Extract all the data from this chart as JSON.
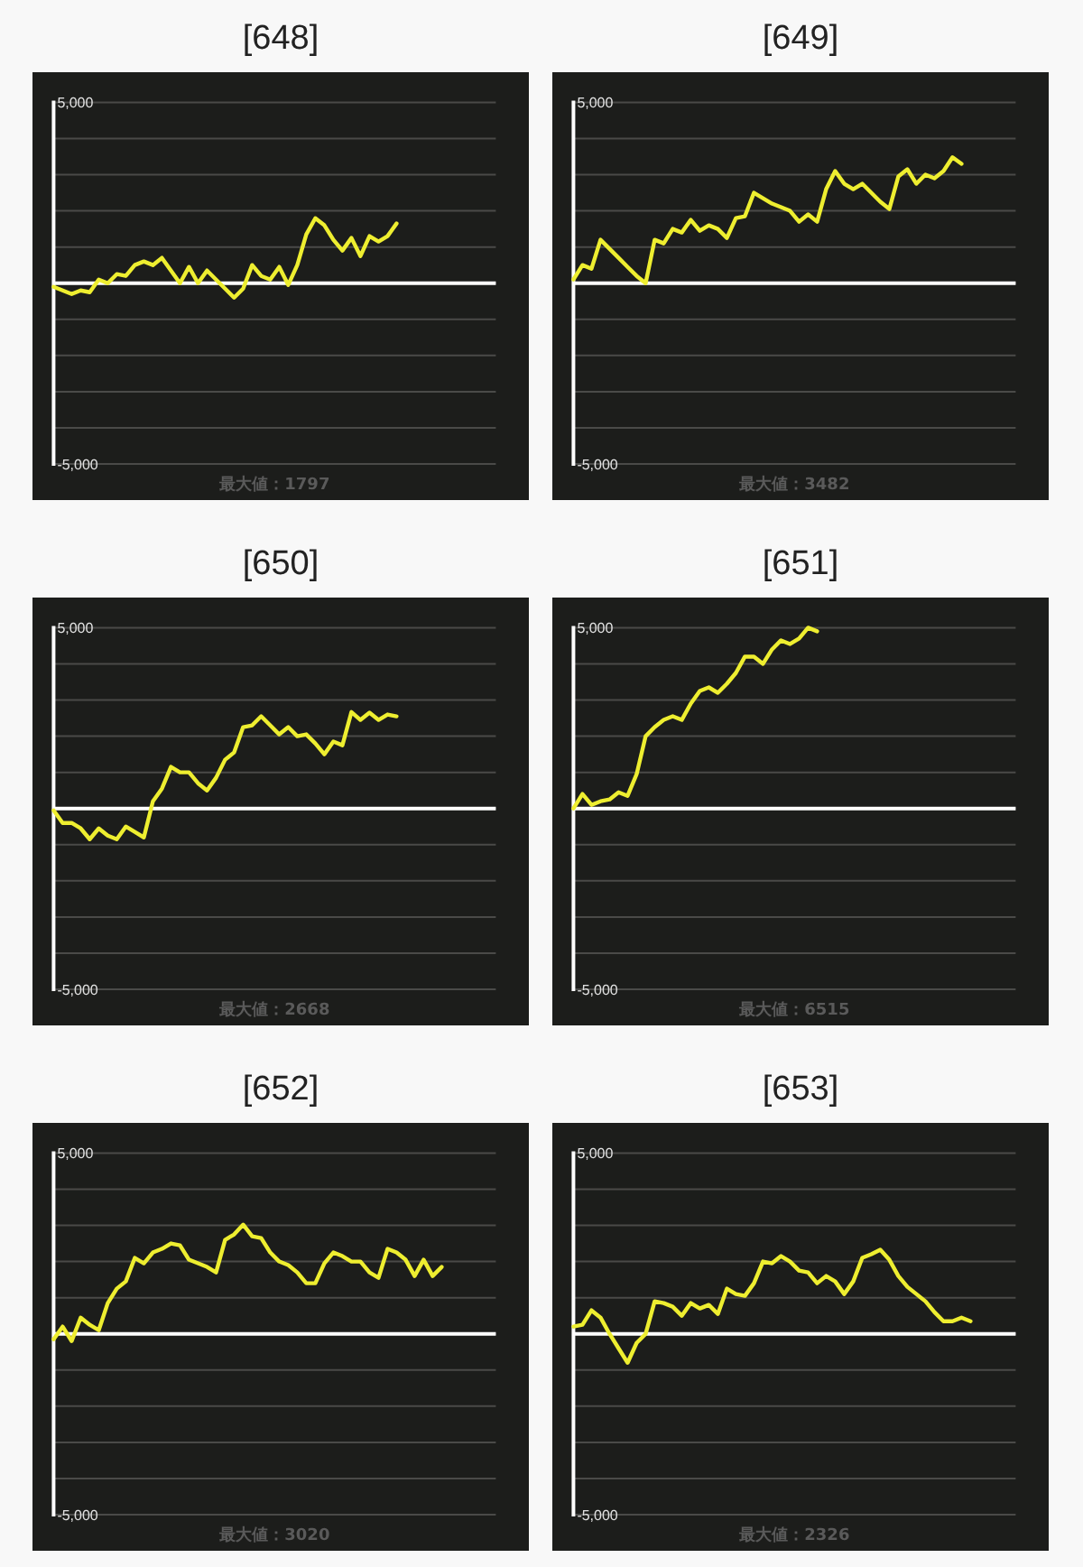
{
  "chart_data": [
    {
      "type": "line",
      "title": "[648]",
      "categories": [
        null,
        null,
        null,
        null,
        null,
        null,
        null,
        null,
        null,
        null,
        null,
        null,
        null,
        null,
        null,
        null,
        null,
        null,
        null,
        null,
        null,
        null,
        null,
        null,
        null,
        null,
        null,
        null,
        null,
        null,
        null,
        null,
        null,
        null,
        null,
        null,
        null,
        null,
        null,
        null,
        null,
        null,
        null,
        null,
        null,
        null,
        null,
        null,
        null,
        null
      ],
      "series": [
        {
          "color": "#eeee30",
          "values": [
            -100,
            -200,
            -300,
            -200,
            -250,
            100,
            0,
            250,
            200,
            500,
            600,
            500,
            700,
            350,
            0,
            450,
            0,
            350,
            100,
            -150,
            -400,
            -150,
            500,
            200,
            100,
            450,
            -50,
            500,
            1350,
            1797,
            1600,
            1200,
            900,
            1250,
            750,
            1300,
            1150,
            1300,
            1650,
            null,
            null,
            null,
            null,
            null,
            null,
            null,
            null,
            null,
            null,
            null
          ]
        }
      ],
      "ylim": [
        -5000,
        5000
      ],
      "yticks": [
        {
          "value": -5000,
          "label": "-5,000"
        },
        {
          "value": -4000,
          "label": null
        },
        {
          "value": -3000,
          "label": null
        },
        {
          "value": -2000,
          "label": null
        },
        {
          "value": -1000,
          "label": null
        },
        {
          "value": 0,
          "label": null
        },
        {
          "value": 1000,
          "label": null
        },
        {
          "value": 2000,
          "label": null
        },
        {
          "value": 3000,
          "label": null
        },
        {
          "value": 4000,
          "label": null
        },
        {
          "value": 5000,
          "label": "5,000"
        }
      ],
      "grid": "y",
      "ref_lines": [
        {
          "axis": "y",
          "value": 0,
          "color": "#ffffff"
        }
      ],
      "annotations": [
        "最大値：1797"
      ]
    },
    {
      "type": "line",
      "title": "[649]",
      "categories": [
        null,
        null,
        null,
        null,
        null,
        null,
        null,
        null,
        null,
        null,
        null,
        null,
        null,
        null,
        null,
        null,
        null,
        null,
        null,
        null,
        null,
        null,
        null,
        null,
        null,
        null,
        null,
        null,
        null,
        null,
        null,
        null,
        null,
        null,
        null,
        null,
        null,
        null,
        null,
        null,
        null,
        null,
        null,
        null,
        null,
        null,
        null,
        null,
        null,
        null
      ],
      "series": [
        {
          "color": "#eeee30",
          "values": [
            100,
            500,
            400,
            1200,
            950,
            700,
            450,
            200,
            0,
            1200,
            1100,
            1500,
            1400,
            1750,
            1450,
            1600,
            1500,
            1250,
            1800,
            1850,
            2500,
            2350,
            2200,
            2100,
            2000,
            1700,
            1900,
            1700,
            2600,
            3100,
            2750,
            2600,
            2750,
            2500,
            2250,
            2050,
            2950,
            3150,
            2750,
            3000,
            2900,
            3100,
            3482,
            3300,
            null,
            null,
            null,
            null,
            null,
            null
          ]
        }
      ],
      "ylim": [
        -5000,
        5000
      ],
      "yticks": [
        {
          "value": -5000,
          "label": "-5,000"
        },
        {
          "value": -4000,
          "label": null
        },
        {
          "value": -3000,
          "label": null
        },
        {
          "value": -2000,
          "label": null
        },
        {
          "value": -1000,
          "label": null
        },
        {
          "value": 0,
          "label": null
        },
        {
          "value": 1000,
          "label": null
        },
        {
          "value": 2000,
          "label": null
        },
        {
          "value": 3000,
          "label": null
        },
        {
          "value": 4000,
          "label": null
        },
        {
          "value": 5000,
          "label": "5,000"
        }
      ],
      "grid": "y",
      "ref_lines": [
        {
          "axis": "y",
          "value": 0,
          "color": "#ffffff"
        }
      ],
      "annotations": [
        "最大値：3482"
      ]
    },
    {
      "type": "line",
      "title": "[650]",
      "categories": [
        null,
        null,
        null,
        null,
        null,
        null,
        null,
        null,
        null,
        null,
        null,
        null,
        null,
        null,
        null,
        null,
        null,
        null,
        null,
        null,
        null,
        null,
        null,
        null,
        null,
        null,
        null,
        null,
        null,
        null,
        null,
        null,
        null,
        null,
        null,
        null,
        null,
        null,
        null,
        null,
        null,
        null,
        null,
        null,
        null,
        null,
        null,
        null,
        null,
        null
      ],
      "series": [
        {
          "color": "#eeee30",
          "values": [
            -50,
            -400,
            -400,
            -550,
            -850,
            -550,
            -750,
            -850,
            -500,
            -650,
            -800,
            200,
            550,
            1150,
            1000,
            1000,
            700,
            500,
            850,
            1350,
            1550,
            2250,
            2300,
            2550,
            2300,
            2050,
            2250,
            2000,
            2050,
            1800,
            1500,
            1850,
            1750,
            2668,
            2450,
            2650,
            2450,
            2600,
            2550,
            null,
            null,
            null,
            null,
            null,
            null,
            null,
            null,
            null,
            null,
            null
          ]
        }
      ],
      "ylim": [
        -5000,
        5000
      ],
      "yticks": [
        {
          "value": -5000,
          "label": "-5,000"
        },
        {
          "value": -4000,
          "label": null
        },
        {
          "value": -3000,
          "label": null
        },
        {
          "value": -2000,
          "label": null
        },
        {
          "value": -1000,
          "label": null
        },
        {
          "value": 0,
          "label": null
        },
        {
          "value": 1000,
          "label": null
        },
        {
          "value": 2000,
          "label": null
        },
        {
          "value": 3000,
          "label": null
        },
        {
          "value": 4000,
          "label": null
        },
        {
          "value": 5000,
          "label": "5,000"
        }
      ],
      "grid": "y",
      "ref_lines": [
        {
          "axis": "y",
          "value": 0,
          "color": "#ffffff"
        }
      ],
      "annotations": [
        "最大値：2668"
      ]
    },
    {
      "type": "line",
      "title": "[651]",
      "categories": [
        null,
        null,
        null,
        null,
        null,
        null,
        null,
        null,
        null,
        null,
        null,
        null,
        null,
        null,
        null,
        null,
        null,
        null,
        null,
        null,
        null,
        null,
        null,
        null,
        null,
        null,
        null,
        null,
        null,
        null,
        null,
        null,
        null,
        null,
        null,
        null,
        null,
        null,
        null,
        null,
        null,
        null,
        null,
        null,
        null,
        null,
        null,
        null,
        null,
        null
      ],
      "series": [
        {
          "color": "#eeee30",
          "values": [
            0,
            400,
            100,
            200,
            250,
            450,
            350,
            950,
            2000,
            2250,
            2450,
            2550,
            2450,
            2900,
            3250,
            3350,
            3200,
            3450,
            3750,
            4200,
            4200,
            4000,
            4400,
            4650,
            4550,
            4700,
            5000,
            4900,
            null,
            null,
            null,
            null,
            null,
            null,
            null,
            null,
            null,
            null,
            null,
            null,
            null,
            null,
            null,
            null,
            null,
            null,
            null,
            null,
            null,
            null
          ]
        }
      ],
      "ylim": [
        -5000,
        5000
      ],
      "yticks": [
        {
          "value": -5000,
          "label": "-5,000"
        },
        {
          "value": -4000,
          "label": null
        },
        {
          "value": -3000,
          "label": null
        },
        {
          "value": -2000,
          "label": null
        },
        {
          "value": -1000,
          "label": null
        },
        {
          "value": 0,
          "label": null
        },
        {
          "value": 1000,
          "label": null
        },
        {
          "value": 2000,
          "label": null
        },
        {
          "value": 3000,
          "label": null
        },
        {
          "value": 4000,
          "label": null
        },
        {
          "value": 5000,
          "label": "5,000"
        }
      ],
      "grid": "y",
      "ref_lines": [
        {
          "axis": "y",
          "value": 0,
          "color": "#ffffff"
        }
      ],
      "annotations": [
        "最大値：6515"
      ]
    },
    {
      "type": "line",
      "title": "[652]",
      "categories": [
        null,
        null,
        null,
        null,
        null,
        null,
        null,
        null,
        null,
        null,
        null,
        null,
        null,
        null,
        null,
        null,
        null,
        null,
        null,
        null,
        null,
        null,
        null,
        null,
        null,
        null,
        null,
        null,
        null,
        null,
        null,
        null,
        null,
        null,
        null,
        null,
        null,
        null,
        null,
        null,
        null,
        null,
        null,
        null,
        null,
        null,
        null,
        null,
        null,
        null
      ],
      "series": [
        {
          "color": "#eeee30",
          "values": [
            -150,
            200,
            -200,
            450,
            250,
            100,
            850,
            1250,
            1450,
            2100,
            1950,
            2250,
            2350,
            2500,
            2450,
            2050,
            1950,
            1850,
            1700,
            2600,
            2750,
            3020,
            2700,
            2650,
            2250,
            2000,
            1900,
            1700,
            1400,
            1400,
            1950,
            2250,
            2150,
            2000,
            2000,
            1700,
            1550,
            2350,
            2250,
            2050,
            1600,
            2050,
            1600,
            1850,
            null,
            null,
            null,
            null,
            null,
            null
          ]
        }
      ],
      "ylim": [
        -5000,
        5000
      ],
      "yticks": [
        {
          "value": -5000,
          "label": "-5,000"
        },
        {
          "value": -4000,
          "label": null
        },
        {
          "value": -3000,
          "label": null
        },
        {
          "value": -2000,
          "label": null
        },
        {
          "value": -1000,
          "label": null
        },
        {
          "value": 0,
          "label": null
        },
        {
          "value": 1000,
          "label": null
        },
        {
          "value": 2000,
          "label": null
        },
        {
          "value": 3000,
          "label": null
        },
        {
          "value": 4000,
          "label": null
        },
        {
          "value": 5000,
          "label": "5,000"
        }
      ],
      "grid": "y",
      "ref_lines": [
        {
          "axis": "y",
          "value": 0,
          "color": "#ffffff"
        }
      ],
      "annotations": [
        "最大値：3020"
      ]
    },
    {
      "type": "line",
      "title": "[653]",
      "categories": [
        null,
        null,
        null,
        null,
        null,
        null,
        null,
        null,
        null,
        null,
        null,
        null,
        null,
        null,
        null,
        null,
        null,
        null,
        null,
        null,
        null,
        null,
        null,
        null,
        null,
        null,
        null,
        null,
        null,
        null,
        null,
        null,
        null,
        null,
        null,
        null,
        null,
        null,
        null,
        null,
        null,
        null,
        null,
        null,
        null,
        null,
        null,
        null,
        null,
        null
      ],
      "series": [
        {
          "color": "#eeee30",
          "values": [
            200,
            250,
            650,
            450,
            0,
            -400,
            -800,
            -250,
            0,
            900,
            850,
            750,
            500,
            850,
            700,
            800,
            550,
            1250,
            1100,
            1050,
            1400,
            2000,
            1950,
            2150,
            2000,
            1750,
            1700,
            1400,
            1600,
            1450,
            1100,
            1450,
            2100,
            2200,
            2326,
            2050,
            1600,
            1300,
            1100,
            900,
            600,
            350,
            350,
            450,
            350,
            null,
            null,
            null,
            null,
            null
          ]
        }
      ],
      "ylim": [
        -5000,
        5000
      ],
      "yticks": [
        {
          "value": -5000,
          "label": "-5,000"
        },
        {
          "value": -4000,
          "label": null
        },
        {
          "value": -3000,
          "label": null
        },
        {
          "value": -2000,
          "label": null
        },
        {
          "value": -1000,
          "label": null
        },
        {
          "value": 0,
          "label": null
        },
        {
          "value": 1000,
          "label": null
        },
        {
          "value": 2000,
          "label": null
        },
        {
          "value": 3000,
          "label": null
        },
        {
          "value": 4000,
          "label": null
        },
        {
          "value": 5000,
          "label": "5,000"
        }
      ],
      "grid": "y",
      "ref_lines": [
        {
          "axis": "y",
          "value": 0,
          "color": "#ffffff"
        }
      ],
      "annotations": [
        "最大値：2326"
      ]
    }
  ]
}
